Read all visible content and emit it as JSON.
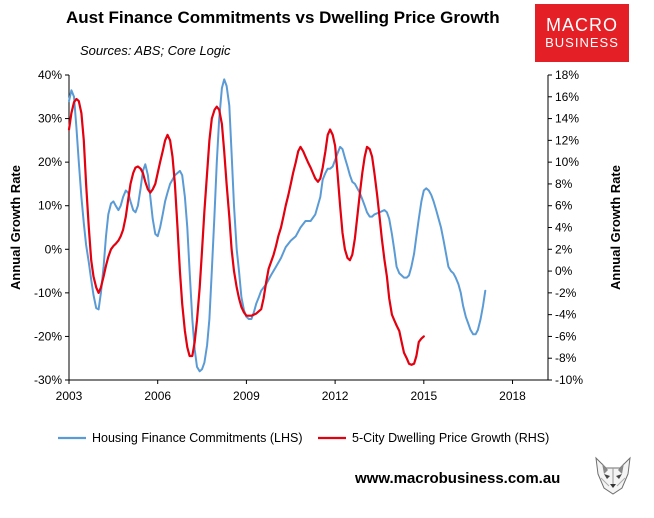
{
  "header": {
    "title": "Aust Finance Commitments vs Dwelling Price Growth",
    "sources": "Sources: ABS; Core Logic"
  },
  "logo": {
    "line1": "MACRO",
    "line2": "BUSINESS",
    "color": "#e41f26"
  },
  "footer": {
    "url": "www.macrobusiness.com.au"
  },
  "chart_data": {
    "type": "line",
    "grid": false,
    "legend_position": "bottom",
    "x_ticks": [
      "2003",
      "2006",
      "2009",
      "2012",
      "2015",
      "2018"
    ],
    "xlim": [
      2003.0,
      2019.2
    ],
    "y_left": {
      "label": "Annual Growth Rate",
      "lim": [
        -30,
        40
      ],
      "ticks": [
        "-30%",
        "-20%",
        "-10%",
        "0%",
        "10%",
        "20%",
        "30%",
        "40%"
      ]
    },
    "y_right": {
      "label": "Annual Growth Rate",
      "lim": [
        -10,
        18
      ],
      "ticks": [
        "-10%",
        "-8%",
        "-6%",
        "-4%",
        "-2%",
        "0%",
        "2%",
        "4%",
        "6%",
        "8%",
        "10%",
        "12%",
        "14%",
        "16%",
        "18%"
      ]
    },
    "series": [
      {
        "name": "Housing Finance Commitments (LHS)",
        "axis": "left",
        "color": "#5b9bd5",
        "points": [
          [
            2003.0,
            34
          ],
          [
            2003.08,
            36.5
          ],
          [
            2003.17,
            35
          ],
          [
            2003.25,
            28
          ],
          [
            2003.33,
            20
          ],
          [
            2003.42,
            12
          ],
          [
            2003.5,
            6
          ],
          [
            2003.58,
            1
          ],
          [
            2003.67,
            -3
          ],
          [
            2003.75,
            -7
          ],
          [
            2003.83,
            -10.5
          ],
          [
            2003.92,
            -13.5
          ],
          [
            2004.0,
            -13.8
          ],
          [
            2004.08,
            -10
          ],
          [
            2004.17,
            -4
          ],
          [
            2004.25,
            3
          ],
          [
            2004.33,
            8
          ],
          [
            2004.42,
            10.5
          ],
          [
            2004.5,
            11
          ],
          [
            2004.58,
            10
          ],
          [
            2004.67,
            9
          ],
          [
            2004.75,
            10
          ],
          [
            2004.83,
            12
          ],
          [
            2004.92,
            13.5
          ],
          [
            2005.0,
            13
          ],
          [
            2005.08,
            11
          ],
          [
            2005.17,
            9
          ],
          [
            2005.25,
            8.5
          ],
          [
            2005.33,
            10
          ],
          [
            2005.42,
            14
          ],
          [
            2005.5,
            18
          ],
          [
            2005.58,
            19.5
          ],
          [
            2005.67,
            17
          ],
          [
            2005.75,
            12
          ],
          [
            2005.83,
            7
          ],
          [
            2005.92,
            3.5
          ],
          [
            2006.0,
            3
          ],
          [
            2006.08,
            5
          ],
          [
            2006.17,
            8
          ],
          [
            2006.25,
            11
          ],
          [
            2006.33,
            13
          ],
          [
            2006.42,
            15
          ],
          [
            2006.5,
            16
          ],
          [
            2006.58,
            17
          ],
          [
            2006.67,
            17.5
          ],
          [
            2006.75,
            18
          ],
          [
            2006.83,
            17
          ],
          [
            2006.92,
            12
          ],
          [
            2007.0,
            5
          ],
          [
            2007.08,
            -5
          ],
          [
            2007.17,
            -16
          ],
          [
            2007.25,
            -23
          ],
          [
            2007.33,
            -27
          ],
          [
            2007.42,
            -28
          ],
          [
            2007.5,
            -27.5
          ],
          [
            2007.58,
            -26
          ],
          [
            2007.67,
            -22
          ],
          [
            2007.75,
            -16
          ],
          [
            2007.83,
            -5
          ],
          [
            2007.92,
            8
          ],
          [
            2008.0,
            20
          ],
          [
            2008.08,
            30
          ],
          [
            2008.17,
            37
          ],
          [
            2008.25,
            39
          ],
          [
            2008.33,
            37.5
          ],
          [
            2008.42,
            33
          ],
          [
            2008.5,
            22
          ],
          [
            2008.58,
            10
          ],
          [
            2008.67,
            0
          ],
          [
            2008.75,
            -5
          ],
          [
            2008.83,
            -11
          ],
          [
            2008.92,
            -14
          ],
          [
            2009.0,
            -15.5
          ],
          [
            2009.08,
            -16
          ],
          [
            2009.17,
            -16
          ],
          [
            2009.25,
            -14.5
          ],
          [
            2009.33,
            -12.5
          ],
          [
            2009.42,
            -11
          ],
          [
            2009.5,
            -9.5
          ],
          [
            2009.67,
            -8
          ],
          [
            2009.83,
            -6
          ],
          [
            2010.0,
            -4
          ],
          [
            2010.17,
            -2
          ],
          [
            2010.33,
            0.5
          ],
          [
            2010.5,
            2
          ],
          [
            2010.67,
            3
          ],
          [
            2010.83,
            5
          ],
          [
            2011.0,
            6.5
          ],
          [
            2011.17,
            6.5
          ],
          [
            2011.33,
            8
          ],
          [
            2011.5,
            12
          ],
          [
            2011.58,
            16
          ],
          [
            2011.67,
            17.5
          ],
          [
            2011.75,
            18.5
          ],
          [
            2011.83,
            18.5
          ],
          [
            2011.92,
            19
          ],
          [
            2012.0,
            20.5
          ],
          [
            2012.08,
            22
          ],
          [
            2012.17,
            23.5
          ],
          [
            2012.25,
            23
          ],
          [
            2012.33,
            21
          ],
          [
            2012.42,
            19
          ],
          [
            2012.5,
            17
          ],
          [
            2012.58,
            15.5
          ],
          [
            2012.67,
            15
          ],
          [
            2012.75,
            14
          ],
          [
            2012.83,
            13
          ],
          [
            2012.92,
            11.5
          ],
          [
            2013.0,
            10
          ],
          [
            2013.08,
            8.5
          ],
          [
            2013.17,
            7.5
          ],
          [
            2013.25,
            7.5
          ],
          [
            2013.33,
            8
          ],
          [
            2013.5,
            8.5
          ],
          [
            2013.67,
            9
          ],
          [
            2013.75,
            8.5
          ],
          [
            2013.83,
            7
          ],
          [
            2013.92,
            3.5
          ],
          [
            2014.0,
            0
          ],
          [
            2014.08,
            -4
          ],
          [
            2014.17,
            -5.5
          ],
          [
            2014.25,
            -6
          ],
          [
            2014.33,
            -6.5
          ],
          [
            2014.42,
            -6.5
          ],
          [
            2014.5,
            -6
          ],
          [
            2014.58,
            -4
          ],
          [
            2014.67,
            -1
          ],
          [
            2014.75,
            3
          ],
          [
            2014.83,
            7
          ],
          [
            2014.92,
            11
          ],
          [
            2015.0,
            13.5
          ],
          [
            2015.08,
            14
          ],
          [
            2015.17,
            13.5
          ],
          [
            2015.25,
            12.5
          ],
          [
            2015.33,
            11
          ],
          [
            2015.42,
            9
          ],
          [
            2015.5,
            7
          ],
          [
            2015.58,
            5
          ],
          [
            2015.67,
            2
          ],
          [
            2015.75,
            -1
          ],
          [
            2015.83,
            -4
          ],
          [
            2015.92,
            -5
          ],
          [
            2016.0,
            -5.5
          ],
          [
            2016.08,
            -6.5
          ],
          [
            2016.17,
            -8
          ],
          [
            2016.25,
            -10
          ],
          [
            2016.33,
            -13
          ],
          [
            2016.42,
            -15.5
          ],
          [
            2016.5,
            -17
          ],
          [
            2016.58,
            -18.5
          ],
          [
            2016.67,
            -19.5
          ],
          [
            2016.75,
            -19.5
          ],
          [
            2016.83,
            -18.5
          ],
          [
            2016.92,
            -16
          ],
          [
            2017.0,
            -13
          ],
          [
            2017.08,
            -9.5
          ]
        ]
      },
      {
        "name": "5-City Dwelling Price Growth (RHS)",
        "axis": "right",
        "color": "#e3000f",
        "points": [
          [
            2003.0,
            13
          ],
          [
            2003.08,
            14.5
          ],
          [
            2003.17,
            15.5
          ],
          [
            2003.25,
            15.8
          ],
          [
            2003.33,
            15.6
          ],
          [
            2003.42,
            14.5
          ],
          [
            2003.5,
            12
          ],
          [
            2003.58,
            8
          ],
          [
            2003.67,
            4
          ],
          [
            2003.75,
            1
          ],
          [
            2003.83,
            -0.5
          ],
          [
            2003.92,
            -1.5
          ],
          [
            2004.0,
            -2
          ],
          [
            2004.08,
            -1.5
          ],
          [
            2004.17,
            -0.5
          ],
          [
            2004.25,
            0.5
          ],
          [
            2004.33,
            1.3
          ],
          [
            2004.42,
            2
          ],
          [
            2004.5,
            2.3
          ],
          [
            2004.58,
            2.5
          ],
          [
            2004.67,
            2.8
          ],
          [
            2004.75,
            3.2
          ],
          [
            2004.83,
            3.8
          ],
          [
            2004.92,
            5
          ],
          [
            2005.0,
            6.5
          ],
          [
            2005.08,
            8
          ],
          [
            2005.17,
            9
          ],
          [
            2005.25,
            9.5
          ],
          [
            2005.33,
            9.6
          ],
          [
            2005.42,
            9.4
          ],
          [
            2005.5,
            9
          ],
          [
            2005.58,
            8.2
          ],
          [
            2005.67,
            7.5
          ],
          [
            2005.75,
            7.2
          ],
          [
            2005.83,
            7.5
          ],
          [
            2005.92,
            8
          ],
          [
            2006.0,
            9
          ],
          [
            2006.08,
            10
          ],
          [
            2006.17,
            11
          ],
          [
            2006.25,
            12
          ],
          [
            2006.33,
            12.5
          ],
          [
            2006.42,
            12
          ],
          [
            2006.5,
            10.5
          ],
          [
            2006.58,
            8
          ],
          [
            2006.67,
            4
          ],
          [
            2006.75,
            0
          ],
          [
            2006.83,
            -3
          ],
          [
            2006.92,
            -5.5
          ],
          [
            2007.0,
            -7
          ],
          [
            2007.08,
            -7.8
          ],
          [
            2007.17,
            -7.8
          ],
          [
            2007.25,
            -6.5
          ],
          [
            2007.33,
            -4.5
          ],
          [
            2007.42,
            -1.5
          ],
          [
            2007.5,
            2
          ],
          [
            2007.58,
            5.5
          ],
          [
            2007.67,
            9
          ],
          [
            2007.75,
            12
          ],
          [
            2007.83,
            14
          ],
          [
            2007.92,
            14.8
          ],
          [
            2008.0,
            15.1
          ],
          [
            2008.08,
            14.8
          ],
          [
            2008.17,
            13.5
          ],
          [
            2008.25,
            11
          ],
          [
            2008.33,
            8
          ],
          [
            2008.42,
            5
          ],
          [
            2008.5,
            2
          ],
          [
            2008.58,
            0
          ],
          [
            2008.67,
            -1.5
          ],
          [
            2008.75,
            -2.5
          ],
          [
            2008.83,
            -3.3
          ],
          [
            2008.92,
            -3.8
          ],
          [
            2009.0,
            -4.1
          ],
          [
            2009.17,
            -4.1
          ],
          [
            2009.33,
            -3.9
          ],
          [
            2009.5,
            -3.5
          ],
          [
            2009.58,
            -2.5
          ],
          [
            2009.67,
            -1
          ],
          [
            2009.75,
            0.2
          ],
          [
            2009.83,
            0.8
          ],
          [
            2009.92,
            1.5
          ],
          [
            2010.0,
            2.3
          ],
          [
            2010.08,
            3.2
          ],
          [
            2010.17,
            4
          ],
          [
            2010.25,
            5
          ],
          [
            2010.33,
            6
          ],
          [
            2010.42,
            7
          ],
          [
            2010.5,
            8
          ],
          [
            2010.58,
            9
          ],
          [
            2010.67,
            10
          ],
          [
            2010.75,
            11
          ],
          [
            2010.83,
            11.4
          ],
          [
            2010.92,
            11
          ],
          [
            2011.0,
            10.5
          ],
          [
            2011.08,
            10
          ],
          [
            2011.17,
            9.5
          ],
          [
            2011.25,
            9
          ],
          [
            2011.33,
            8.5
          ],
          [
            2011.42,
            8.2
          ],
          [
            2011.5,
            8.5
          ],
          [
            2011.58,
            9.5
          ],
          [
            2011.67,
            11
          ],
          [
            2011.75,
            12.5
          ],
          [
            2011.83,
            13
          ],
          [
            2011.92,
            12.5
          ],
          [
            2012.0,
            11.5
          ],
          [
            2012.08,
            9
          ],
          [
            2012.17,
            6
          ],
          [
            2012.25,
            3.5
          ],
          [
            2012.33,
            2
          ],
          [
            2012.42,
            1.2
          ],
          [
            2012.5,
            1
          ],
          [
            2012.58,
            1.5
          ],
          [
            2012.67,
            3
          ],
          [
            2012.75,
            5
          ],
          [
            2012.83,
            7
          ],
          [
            2012.92,
            9
          ],
          [
            2013.0,
            10.5
          ],
          [
            2013.08,
            11.4
          ],
          [
            2013.17,
            11.2
          ],
          [
            2013.25,
            10.5
          ],
          [
            2013.33,
            9
          ],
          [
            2013.42,
            7
          ],
          [
            2013.5,
            5
          ],
          [
            2013.58,
            3
          ],
          [
            2013.67,
            1
          ],
          [
            2013.75,
            -0.5
          ],
          [
            2013.83,
            -2.5
          ],
          [
            2013.92,
            -4
          ],
          [
            2014.0,
            -4.5
          ],
          [
            2014.08,
            -5
          ],
          [
            2014.17,
            -5.5
          ],
          [
            2014.25,
            -6.5
          ],
          [
            2014.33,
            -7.5
          ],
          [
            2014.42,
            -8
          ],
          [
            2014.5,
            -8.5
          ],
          [
            2014.58,
            -8.6
          ],
          [
            2014.67,
            -8.5
          ],
          [
            2014.75,
            -7.8
          ],
          [
            2014.83,
            -6.5
          ],
          [
            2014.92,
            -6.2
          ],
          [
            2015.0,
            -6.0
          ]
        ]
      }
    ]
  }
}
